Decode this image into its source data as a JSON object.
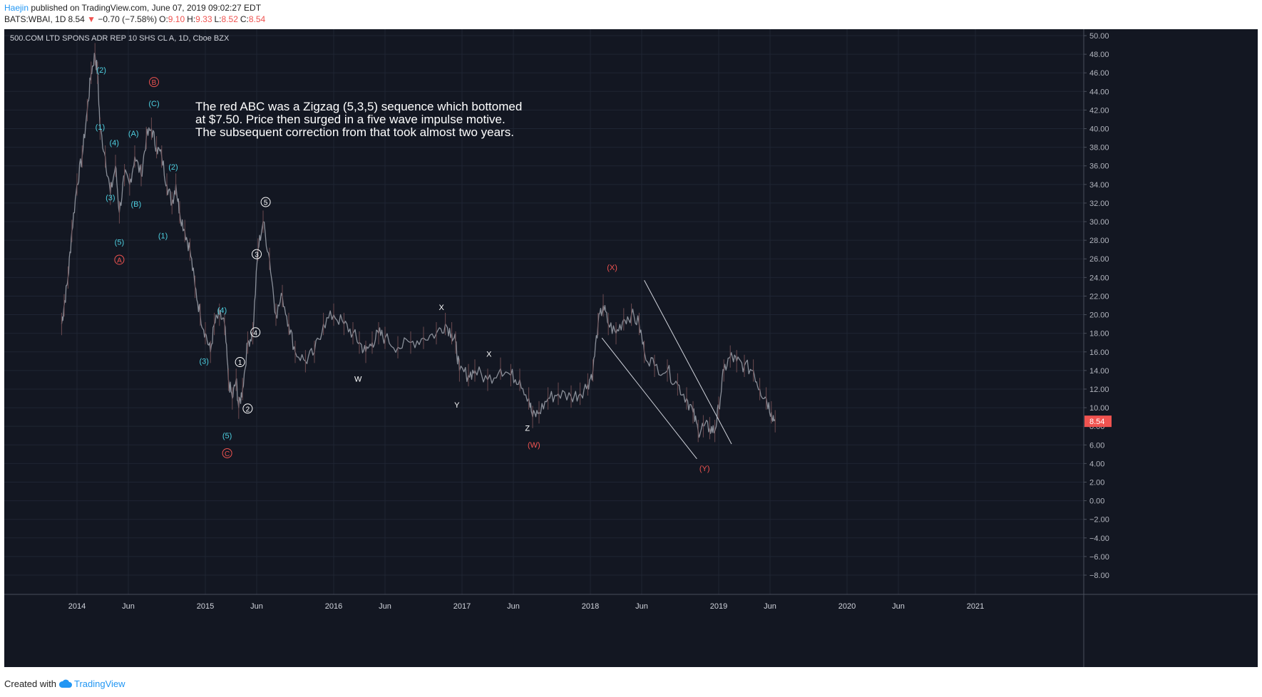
{
  "header": {
    "author": "Haejin",
    "published_text": "published on TradingView.com, June 07, 2019 09:02:27 EDT",
    "symbol_line": "BATS:WBAI, 1D",
    "last": "8.54",
    "change": "−0.70 (−7.58%)",
    "o_label": "O:",
    "o": "9.10",
    "h_label": "H:",
    "h": "9.33",
    "l_label": "L:",
    "l": "8.52",
    "c_label": "C:",
    "c": "8.54"
  },
  "footer": {
    "created_with": "Created with",
    "brand": "TradingView"
  },
  "chart_data": {
    "type": "line",
    "title": "500.COM LTD SPONS ADR REP 10 SHS CL A, 1D, Cboe BZX",
    "annotation": [
      "The red ABC was a Zigzag (5,3,5) sequence which bottomed",
      "at $7.50. Price then surged in a five wave impulse motive.",
      "The subsequent correction from that took almost two years."
    ],
    "ylim": [
      -8,
      50
    ],
    "y_ticks": [
      "50.00",
      "48.00",
      "46.00",
      "44.00",
      "42.00",
      "40.00",
      "38.00",
      "36.00",
      "34.00",
      "32.00",
      "30.00",
      "28.00",
      "26.00",
      "24.00",
      "22.00",
      "20.00",
      "18.00",
      "16.00",
      "14.00",
      "12.00",
      "10.00",
      "8.00",
      "6.00",
      "4.00",
      "2.00",
      "0.00",
      "−2.00",
      "−4.00",
      "−6.00",
      "−8.00"
    ],
    "x_ticks": [
      {
        "label": "2014",
        "t": 2014.0
      },
      {
        "label": "Jun",
        "t": 2014.4
      },
      {
        "label": "2015",
        "t": 2015.0
      },
      {
        "label": "Jun",
        "t": 2015.4
      },
      {
        "label": "2016",
        "t": 2016.0
      },
      {
        "label": "Jun",
        "t": 2016.4
      },
      {
        "label": "2017",
        "t": 2017.0
      },
      {
        "label": "Jun",
        "t": 2017.4
      },
      {
        "label": "2018",
        "t": 2018.0
      },
      {
        "label": "Jun",
        "t": 2018.4
      },
      {
        "label": "2019",
        "t": 2019.0
      },
      {
        "label": "Jun",
        "t": 2019.4
      },
      {
        "label": "2020",
        "t": 2020.0
      },
      {
        "label": "Jun",
        "t": 2020.4
      },
      {
        "label": "2021",
        "t": 2021.0
      }
    ],
    "last_price": "8.54",
    "series": [
      {
        "points": [
          [
            2013.88,
            19
          ],
          [
            2013.9,
            21
          ],
          [
            2013.93,
            24
          ],
          [
            2013.96,
            29
          ],
          [
            2014.0,
            34
          ],
          [
            2014.04,
            37
          ],
          [
            2014.08,
            42
          ],
          [
            2014.11,
            46
          ],
          [
            2014.14,
            48
          ],
          [
            2014.16,
            46
          ],
          [
            2014.18,
            40
          ],
          [
            2014.22,
            37
          ],
          [
            2014.26,
            33
          ],
          [
            2014.3,
            36
          ],
          [
            2014.33,
            31
          ],
          [
            2014.37,
            35
          ],
          [
            2014.41,
            34
          ],
          [
            2014.45,
            37
          ],
          [
            2014.5,
            35
          ],
          [
            2014.54,
            39
          ],
          [
            2014.58,
            40
          ],
          [
            2014.62,
            38
          ],
          [
            2014.66,
            37
          ],
          [
            2014.7,
            34
          ],
          [
            2014.74,
            32
          ],
          [
            2014.77,
            34
          ],
          [
            2014.8,
            31
          ],
          [
            2014.84,
            29
          ],
          [
            2014.88,
            27
          ],
          [
            2014.92,
            23
          ],
          [
            2014.96,
            20
          ],
          [
            2015.0,
            18
          ],
          [
            2015.04,
            16
          ],
          [
            2015.07,
            19
          ],
          [
            2015.11,
            20
          ],
          [
            2015.15,
            19
          ],
          [
            2015.18,
            13
          ],
          [
            2015.21,
            11
          ],
          [
            2015.24,
            13
          ],
          [
            2015.26,
            10
          ],
          [
            2015.29,
            12
          ],
          [
            2015.33,
            17
          ],
          [
            2015.37,
            18
          ],
          [
            2015.41,
            27
          ],
          [
            2015.45,
            30
          ],
          [
            2015.5,
            26
          ],
          [
            2015.55,
            20
          ],
          [
            2015.6,
            22
          ],
          [
            2015.65,
            19
          ],
          [
            2015.7,
            16
          ],
          [
            2015.78,
            15
          ],
          [
            2015.85,
            16
          ],
          [
            2015.92,
            19
          ],
          [
            2016.0,
            20
          ],
          [
            2016.08,
            19
          ],
          [
            2016.15,
            18
          ],
          [
            2016.2,
            17
          ],
          [
            2016.25,
            16
          ],
          [
            2016.3,
            17
          ],
          [
            2016.35,
            18
          ],
          [
            2016.4,
            17.5
          ],
          [
            2016.5,
            16.5
          ],
          [
            2016.6,
            17
          ],
          [
            2016.7,
            17.5
          ],
          [
            2016.8,
            18
          ],
          [
            2016.87,
            19
          ],
          [
            2016.92,
            18
          ],
          [
            2016.95,
            17
          ],
          [
            2016.98,
            14
          ],
          [
            2017.05,
            13.5
          ],
          [
            2017.1,
            14
          ],
          [
            2017.2,
            13
          ],
          [
            2017.3,
            14.2
          ],
          [
            2017.38,
            13.5
          ],
          [
            2017.45,
            13
          ],
          [
            2017.52,
            11
          ],
          [
            2017.55,
            9
          ],
          [
            2017.6,
            9.5
          ],
          [
            2017.67,
            11
          ],
          [
            2017.75,
            11.5
          ],
          [
            2017.85,
            11.2
          ],
          [
            2017.92,
            11.5
          ],
          [
            2017.98,
            12.5
          ],
          [
            2018.02,
            14
          ],
          [
            2018.06,
            19
          ],
          [
            2018.1,
            21
          ],
          [
            2018.14,
            19
          ],
          [
            2018.2,
            18
          ],
          [
            2018.26,
            19.5
          ],
          [
            2018.32,
            20
          ],
          [
            2018.38,
            19
          ],
          [
            2018.42,
            16
          ],
          [
            2018.5,
            14.5
          ],
          [
            2018.6,
            14
          ],
          [
            2018.68,
            12.5
          ],
          [
            2018.75,
            11
          ],
          [
            2018.8,
            9.5
          ],
          [
            2018.84,
            7.5
          ],
          [
            2018.88,
            8
          ],
          [
            2018.93,
            7.8
          ],
          [
            2018.97,
            7.5
          ],
          [
            2019.0,
            10
          ],
          [
            2019.04,
            14
          ],
          [
            2019.09,
            15.5
          ],
          [
            2019.14,
            15
          ],
          [
            2019.2,
            14.5
          ],
          [
            2019.27,
            14
          ],
          [
            2019.32,
            12
          ],
          [
            2019.37,
            11
          ],
          [
            2019.41,
            9.5
          ],
          [
            2019.44,
            8.54
          ]
        ]
      }
    ],
    "white_labels": [
      {
        "text": "X",
        "t": 2016.84,
        "y": 20.5
      },
      {
        "text": "W",
        "t": 2016.19,
        "y": 12.8
      },
      {
        "text": "X",
        "t": 2017.21,
        "y": 15.5
      },
      {
        "text": "Y",
        "t": 2016.96,
        "y": 10
      },
      {
        "text": "Z",
        "t": 2017.51,
        "y": 7.5
      }
    ],
    "circled_white_labels": [
      {
        "text": "5",
        "t": 2015.47,
        "y": 31.8
      },
      {
        "text": "3",
        "t": 2015.4,
        "y": 26.2
      },
      {
        "text": "4",
        "t": 2015.39,
        "y": 17.8
      },
      {
        "text": "1",
        "t": 2015.27,
        "y": 14.6
      },
      {
        "text": "2",
        "t": 2015.33,
        "y": 9.6
      }
    ],
    "cyan_labels": [
      {
        "text": "(2)",
        "t": 2014.19,
        "y": 46
      },
      {
        "text": "(1)",
        "t": 2014.18,
        "y": 39.9
      },
      {
        "text": "(4)",
        "t": 2014.29,
        "y": 38.2
      },
      {
        "text": "(3)",
        "t": 2014.26,
        "y": 32.3
      },
      {
        "text": "(5)",
        "t": 2014.33,
        "y": 27.5
      },
      {
        "text": "(C)",
        "t": 2014.6,
        "y": 42.4
      },
      {
        "text": "(A)",
        "t": 2014.44,
        "y": 39.2
      },
      {
        "text": "(B)",
        "t": 2014.46,
        "y": 31.6
      },
      {
        "text": "(2)",
        "t": 2014.75,
        "y": 35.6
      },
      {
        "text": "(1)",
        "t": 2014.67,
        "y": 28.2
      },
      {
        "text": "(4)",
        "t": 2015.13,
        "y": 20.2
      },
      {
        "text": "(3)",
        "t": 2014.99,
        "y": 14.7
      },
      {
        "text": "(5)",
        "t": 2015.17,
        "y": 6.7
      }
    ],
    "red_circled_labels": [
      {
        "text": "B",
        "t": 2014.6,
        "y": 44.7
      },
      {
        "text": "A",
        "t": 2014.33,
        "y": 25.6
      },
      {
        "text": "C",
        "t": 2015.17,
        "y": 4.8
      }
    ],
    "red_labels": [
      {
        "text": "(X)",
        "t": 2018.17,
        "y": 24.8
      },
      {
        "text": "(W)",
        "t": 2017.56,
        "y": 5.7
      },
      {
        "text": "(Y)",
        "t": 2018.89,
        "y": 3.2
      }
    ],
    "trendlines": [
      {
        "from": [
          2018.09,
          17.5
        ],
        "to": [
          2018.83,
          4.5
        ]
      },
      {
        "from": [
          2018.42,
          23.7
        ],
        "to": [
          2019.1,
          6.1
        ]
      }
    ]
  }
}
